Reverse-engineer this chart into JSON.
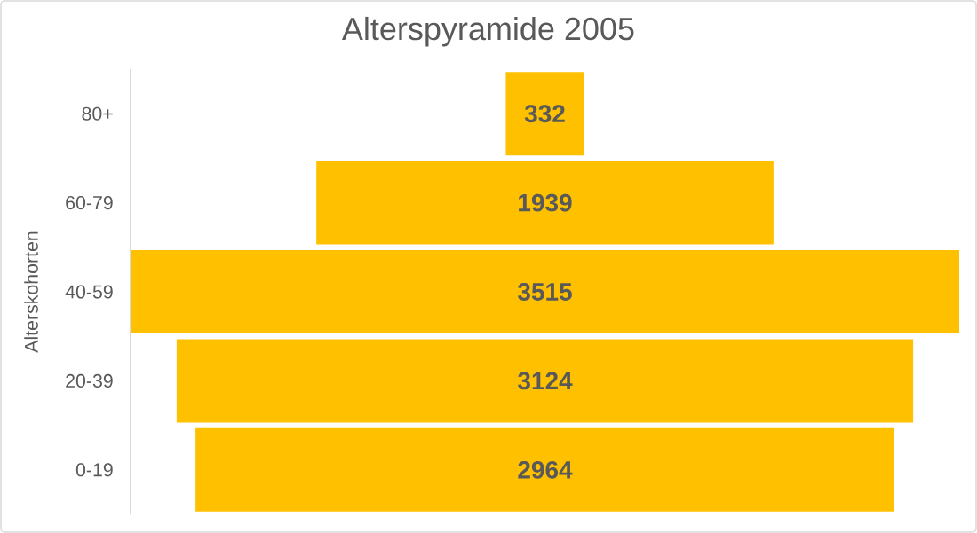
{
  "chart_data": {
    "type": "other",
    "title": "Alterspyramide 2005",
    "ylabel": "Alterskohorten",
    "categories": [
      "80+",
      "60-79",
      "40-59",
      "20-39",
      "0-19"
    ],
    "values": [
      332,
      1939,
      3515,
      3124,
      2964
    ],
    "color": "#ffc000",
    "data_labels": true
  }
}
